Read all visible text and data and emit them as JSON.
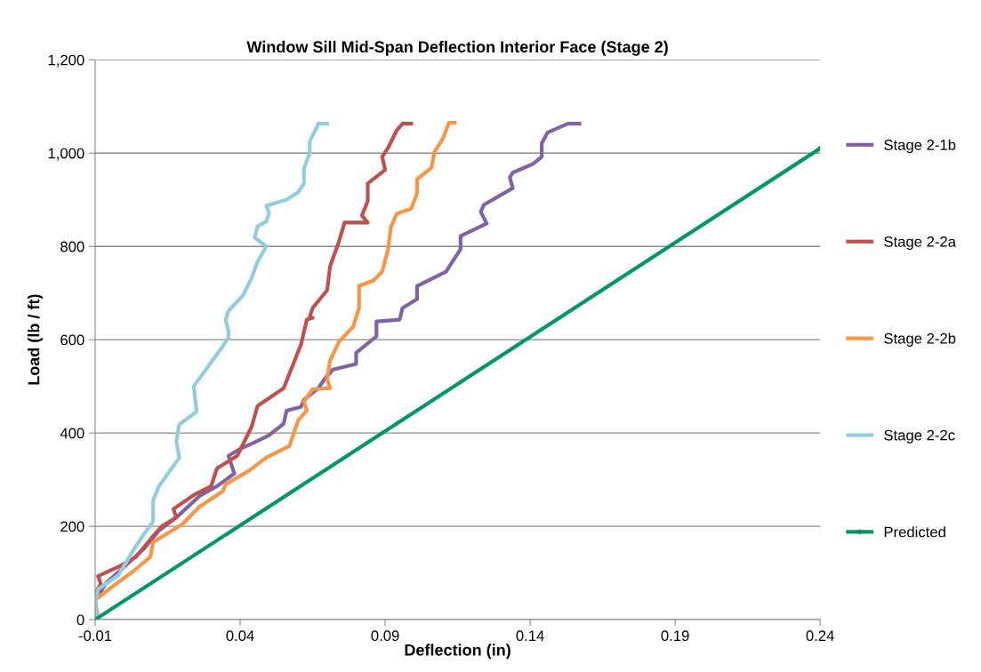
{
  "chart_data": {
    "type": "line",
    "title": "Window Sill Mid-Span Deflection Interior Face (Stage 2)",
    "xlabel": "Deflection (in)",
    "ylabel": "Load (lb / ft)",
    "xlim": [
      -0.01,
      0.24
    ],
    "xticks": [
      -0.01,
      0.04,
      0.09,
      0.14,
      0.19,
      0.24
    ],
    "ylim": [
      0,
      1200
    ],
    "yticks": [
      {
        "value": 0,
        "label": "0"
      },
      {
        "value": 200,
        "label": "200"
      },
      {
        "value": 400,
        "label": "400"
      },
      {
        "value": 600,
        "label": "600"
      },
      {
        "value": 800,
        "label": "800"
      },
      {
        "value": 1000,
        "label": "1,000"
      },
      {
        "value": 1200,
        "label": "1,200"
      }
    ],
    "grid": "y",
    "legend": "right",
    "marker": "none",
    "line_style": "solid",
    "series": [
      {
        "name": "Stage 2-1b",
        "color": "#8064a2",
        "x": [
          -0.01,
          -0.01,
          -0.006,
          0.0,
          0.007,
          0.012,
          0.018,
          0.026,
          0.032,
          0.038,
          0.036,
          0.04,
          0.045,
          0.05,
          0.055,
          0.056,
          0.061,
          0.062,
          0.067,
          0.069,
          0.072,
          0.08,
          0.08,
          0.087,
          0.087,
          0.095,
          0.096,
          0.101,
          0.101,
          0.111,
          0.116,
          0.116,
          0.125,
          0.123,
          0.124,
          0.134,
          0.133,
          0.134,
          0.141,
          0.144,
          0.144,
          0.146,
          0.153,
          0.157
        ],
        "values": [
          10,
          42,
          80,
          113,
          153,
          191,
          219,
          265,
          286,
          313,
          351,
          366,
          380,
          395,
          420,
          448,
          456,
          471,
          496,
          515,
          536,
          548,
          572,
          607,
          639,
          643,
          668,
          687,
          715,
          746,
          794,
          822,
          849,
          874,
          889,
          925,
          948,
          958,
          977,
          992,
          1021,
          1044,
          1063,
          1063
        ]
      },
      {
        "name": "Stage 2-2a",
        "color": "#c0504d",
        "x": [
          -0.01,
          -0.01,
          -0.008,
          -0.009,
          -0.002,
          0.004,
          0.01,
          0.013,
          0.018,
          0.017,
          0.024,
          0.03,
          0.032,
          0.039,
          0.044,
          0.046,
          0.055,
          0.061,
          0.063,
          0.065,
          0.064,
          0.065,
          0.07,
          0.071,
          0.074,
          0.076,
          0.084,
          0.082,
          0.084,
          0.084,
          0.09,
          0.089,
          0.091,
          0.094,
          0.096,
          0.099
        ],
        "values": [
          13,
          57,
          76,
          93,
          113,
          134,
          179,
          200,
          219,
          237,
          267,
          286,
          324,
          351,
          414,
          458,
          496,
          590,
          643,
          647,
          649,
          668,
          706,
          757,
          809,
          851,
          851,
          866,
          897,
          935,
          964,
          992,
          1011,
          1049,
          1063,
          1063
        ]
      },
      {
        "name": "Stage 2-2b",
        "color": "#f79646",
        "x": [
          -0.009,
          -0.01,
          -0.004,
          0.003,
          0.009,
          0.01,
          0.02,
          0.026,
          0.034,
          0.035,
          0.043,
          0.049,
          0.055,
          0.057,
          0.06,
          0.063,
          0.062,
          0.065,
          0.071,
          0.07,
          0.071,
          0.074,
          0.079,
          0.081,
          0.081,
          0.086,
          0.089,
          0.091,
          0.092,
          0.094,
          0.099,
          0.101,
          0.101,
          0.106,
          0.107,
          0.11,
          0.112,
          0.114
        ],
        "values": [
          5,
          42,
          71,
          103,
          134,
          166,
          204,
          242,
          275,
          290,
          319,
          347,
          366,
          372,
          427,
          448,
          467,
          494,
          496,
          515,
          555,
          595,
          628,
          668,
          715,
          727,
          746,
          794,
          841,
          870,
          881,
          914,
          944,
          969,
          1002,
          1032,
          1065,
          1065
        ]
      },
      {
        "name": "Stage 2-2c",
        "color": "#93cddd",
        "x": [
          -0.009,
          -0.01,
          -0.009,
          -0.002,
          0.003,
          0.007,
          0.01,
          0.01,
          0.012,
          0.019,
          0.018,
          0.019,
          0.025,
          0.024,
          0.034,
          0.036,
          0.036,
          0.035,
          0.036,
          0.041,
          0.044,
          0.046,
          0.049,
          0.045,
          0.046,
          0.049,
          0.05,
          0.049,
          0.056,
          0.06,
          0.062,
          0.062,
          0.064,
          0.064,
          0.067,
          0.07
        ],
        "values": [
          4,
          32,
          65,
          95,
          147,
          185,
          210,
          256,
          286,
          347,
          382,
          418,
          446,
          500,
          586,
          605,
          618,
          643,
          662,
          695,
          733,
          767,
          800,
          819,
          843,
          853,
          872,
          887,
          900,
          916,
          935,
          967,
          1000,
          1025,
          1063,
          1063
        ]
      },
      {
        "name": "Predicted",
        "color": "#00956b",
        "marker": "circle",
        "x": [
          -0.01,
          0.24
        ],
        "values": [
          0,
          1010
        ]
      }
    ]
  }
}
